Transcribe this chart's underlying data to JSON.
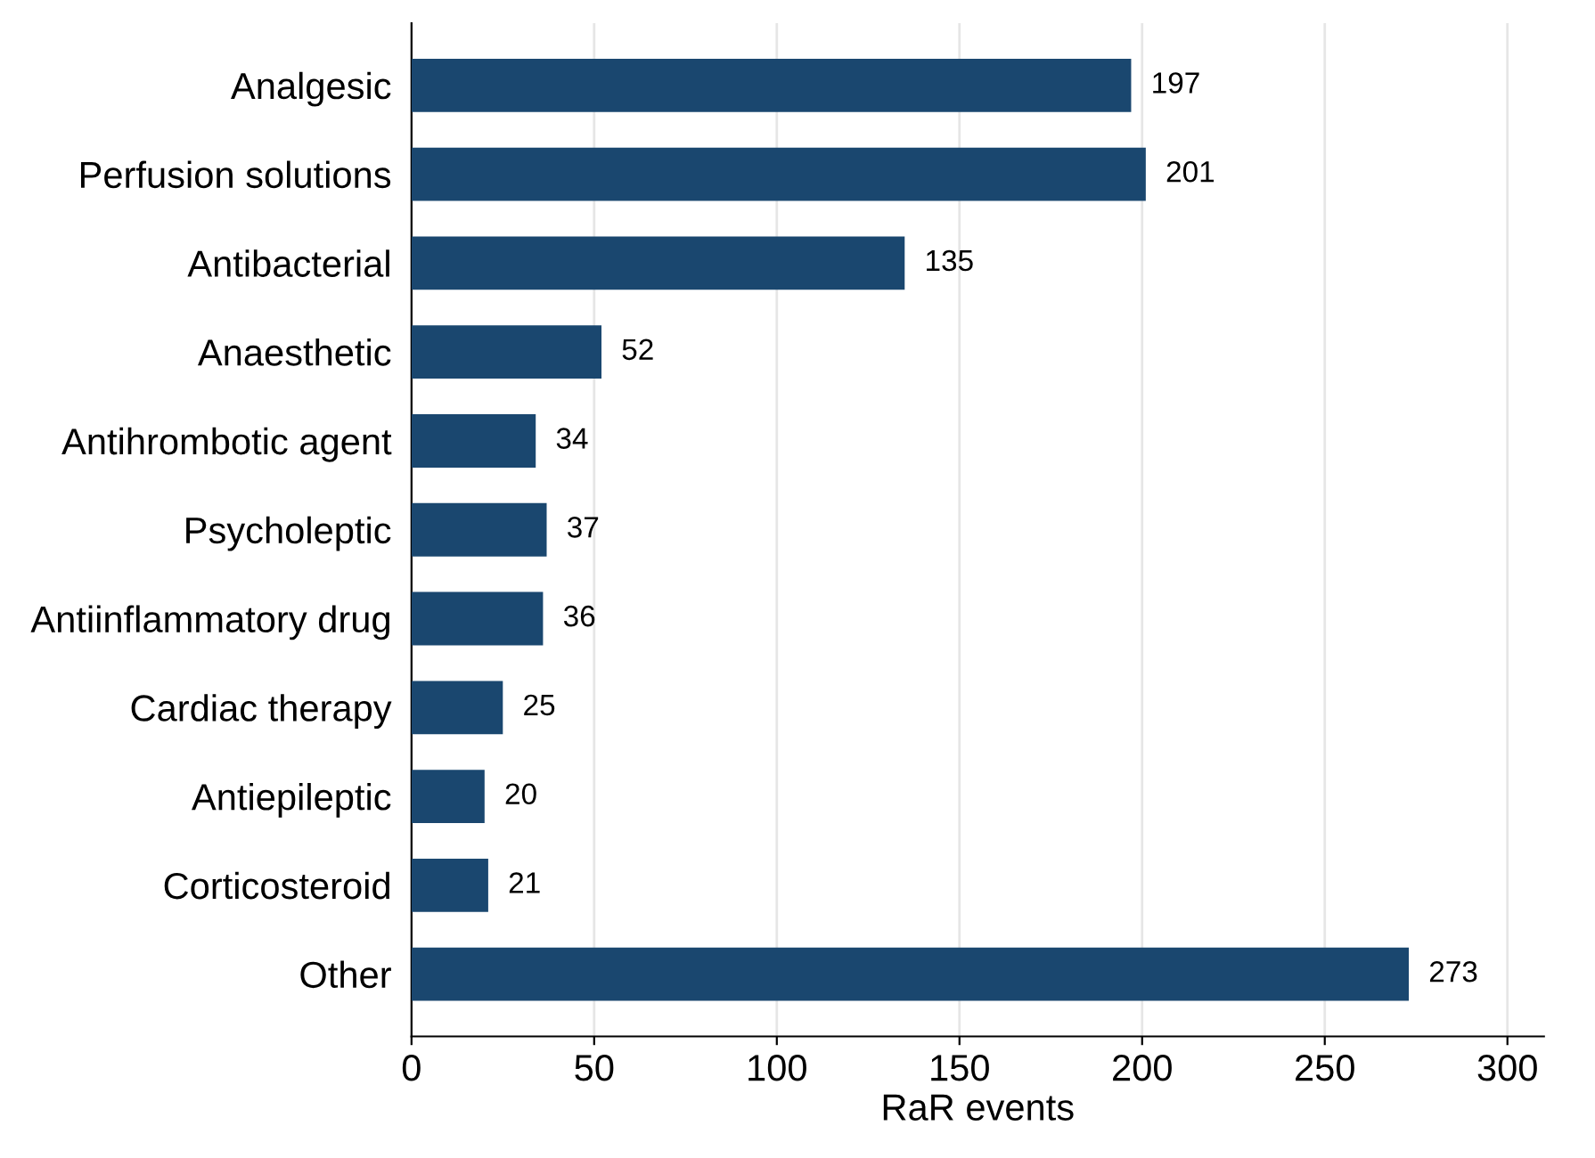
{
  "chart_data": {
    "type": "bar",
    "orientation": "horizontal",
    "xlabel": "RaR events",
    "categories": [
      "Analgesic",
      "Perfusion solutions",
      "Antibacterial",
      "Anaesthetic",
      "Antihrombotic agent",
      "Psycholeptic",
      "Antiinflammatory drug",
      "Cardiac therapy",
      "Antiepileptic",
      "Corticosteroid",
      "Other"
    ],
    "values": [
      197,
      201,
      135,
      52,
      34,
      37,
      36,
      25,
      20,
      21,
      273
    ],
    "color": "#1a476f",
    "xlim": [
      0,
      310
    ],
    "xticks": [
      0,
      50,
      100,
      150,
      200,
      250,
      300
    ],
    "grid": "x",
    "data_labels": true
  }
}
